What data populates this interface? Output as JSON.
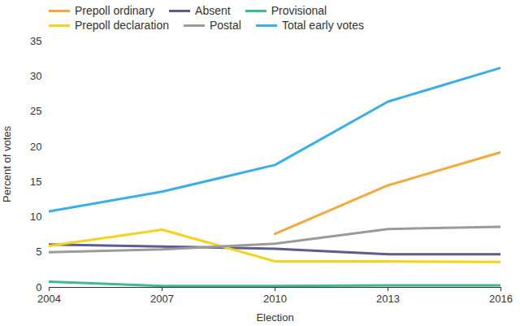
{
  "chart_data": {
    "type": "line",
    "x_label": "Election",
    "y_label": "Percent of votes",
    "x": [
      2004,
      2007,
      2010,
      2013,
      2016
    ],
    "series": [
      {
        "name": "Prepoll ordinary",
        "color": "#f4a93b",
        "values": [
          null,
          null,
          7.6,
          14.5,
          19.2
        ]
      },
      {
        "name": "Absent",
        "color": "#5d5b8f",
        "values": [
          6.1,
          5.8,
          5.5,
          4.7,
          4.7
        ]
      },
      {
        "name": "Provisional",
        "color": "#3dbb8f",
        "values": [
          0.8,
          0.2,
          0.2,
          0.3,
          0.3
        ]
      },
      {
        "name": "Prepoll declaration",
        "color": "#f7d21c",
        "values": [
          5.9,
          8.2,
          3.7,
          3.7,
          3.6
        ]
      },
      {
        "name": "Postal",
        "color": "#9b9b9b",
        "values": [
          5.0,
          5.4,
          6.2,
          8.3,
          8.6
        ]
      },
      {
        "name": "Total early votes",
        "color": "#3aaee8",
        "values": [
          10.8,
          13.6,
          17.4,
          26.4,
          31.2
        ]
      }
    ],
    "xlim": [
      2004,
      2016
    ],
    "xticks": [
      2004,
      2007,
      2010,
      2013,
      2016
    ],
    "ylim": [
      0,
      35
    ],
    "yticks": [
      0,
      5,
      10,
      15,
      20,
      25,
      30,
      35
    ],
    "grid": false,
    "legend": "top-left"
  }
}
